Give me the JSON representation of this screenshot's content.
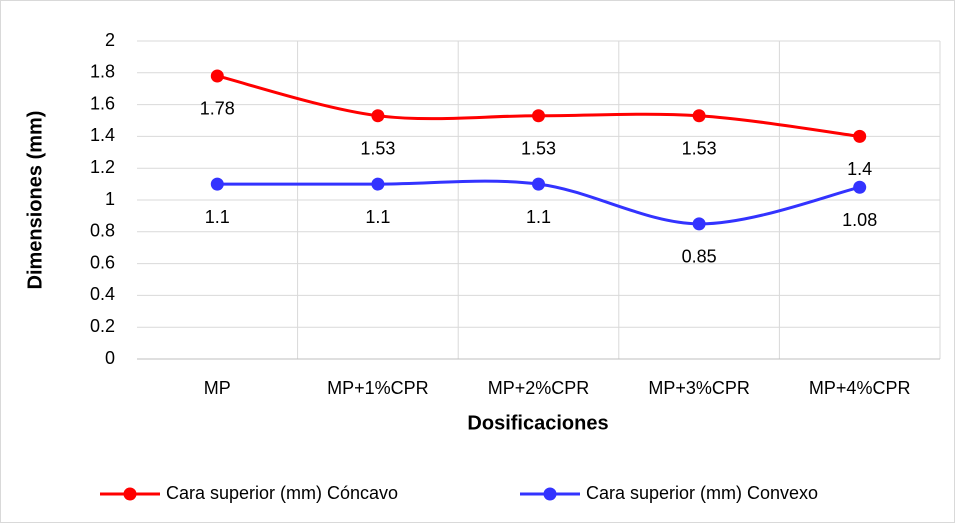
{
  "chart_data": {
    "type": "line",
    "categories": [
      "MP",
      "MP+1%CPR",
      "MP+2%CPR",
      "MP+3%CPR",
      "MP+4%CPR"
    ],
    "series": [
      {
        "name": "Cara superior (mm) Cóncavo",
        "color": "#ff0000",
        "values": [
          1.78,
          1.53,
          1.53,
          1.53,
          1.4
        ]
      },
      {
        "name": "Cara superior (mm) Convexo",
        "color": "#3333ff",
        "values": [
          1.1,
          1.1,
          1.1,
          0.85,
          1.08
        ]
      }
    ],
    "x_label": "Dosificaciones",
    "y_label": "Dimensiones (mm)",
    "ylim": [
      0,
      2
    ],
    "yticks": [
      0,
      0.2,
      0.4,
      0.6,
      0.8,
      1,
      1.2,
      1.4,
      1.6,
      1.8,
      2
    ],
    "grid": true,
    "smooth": true,
    "legend": "bottom"
  }
}
